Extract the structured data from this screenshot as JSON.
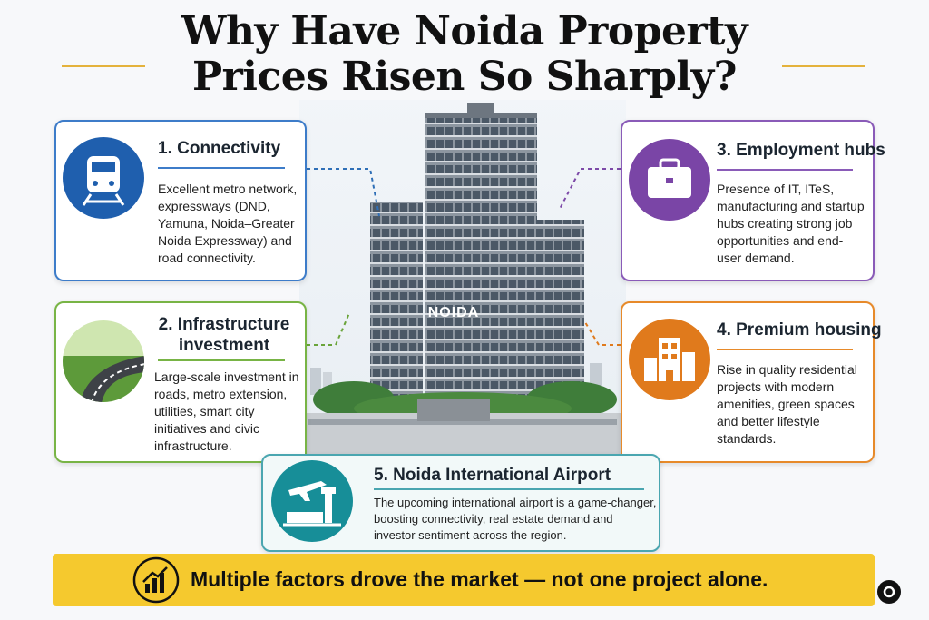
{
  "header": {
    "title_lines": [
      "Why Have Noida Property",
      "Prices Risen So Sharply?"
    ]
  },
  "cards": [
    {
      "title": "1. Connectivity",
      "text": "Excellent metro network, expressways (DND, Yamuna, Noida–Greater Noida Expressway) and road connectivity."
    },
    {
      "title": "2. Infrastructure investment",
      "text": "Large-scale investment in roads, metro extension, utilities, smart city initiatives and civic infrastructure."
    },
    {
      "title": "3. Employment hubs",
      "text": "Presence of IT, ITeS, manufacturing and startup hubs creating strong job opportunities and end-user demand."
    },
    {
      "title": "4. Premium housing",
      "text": "Rise in quality residential projects with modern amenities, green spaces and better lifestyle standards."
    },
    {
      "title": "5. Noida International Airport",
      "text": "The upcoming international airport is a game-changer, boosting connectivity, real estate demand and investor sentiment across the region."
    }
  ],
  "building_sign": "NOIDA",
  "footer": "Multiple factors drove the market — not one project alone."
}
